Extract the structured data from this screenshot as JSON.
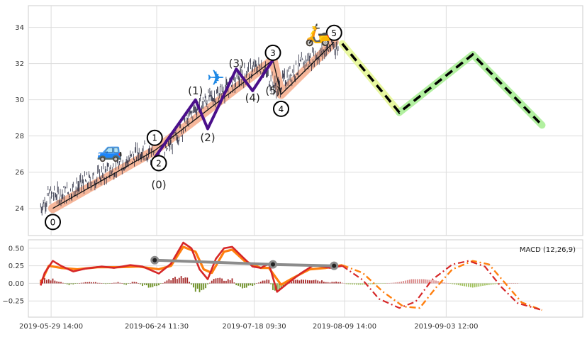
{
  "chart_data": [
    {
      "type": "line",
      "panel": "price",
      "ylim": [
        22.5,
        35.2
      ],
      "y_ticks": [
        "24",
        "26",
        "28",
        "30",
        "32",
        "34"
      ],
      "y_tick_values": [
        24,
        26,
        28,
        30,
        32,
        34
      ],
      "grid": true,
      "x_range_dates": [
        "2019-05-24",
        "2019-10-07"
      ],
      "price_path": [
        [
          "2019-05-27",
          24.1
        ],
        [
          "2019-05-29",
          24.7
        ],
        [
          "2019-06-02",
          24.8
        ],
        [
          "2019-06-06",
          25.3
        ],
        [
          "2019-06-10",
          25.7
        ],
        [
          "2019-06-14",
          26.2
        ],
        [
          "2019-06-18",
          26.7
        ],
        [
          "2019-06-21",
          27.3
        ],
        [
          "2019-06-23",
          26.9
        ],
        [
          "2019-06-25",
          26.6
        ],
        [
          "2019-06-28",
          27.6
        ],
        [
          "2019-07-01",
          28.5
        ],
        [
          "2019-07-03",
          29.2
        ],
        [
          "2019-07-05",
          29.8
        ],
        [
          "2019-07-08",
          30.1
        ],
        [
          "2019-07-11",
          30.5
        ],
        [
          "2019-07-14",
          31.0
        ],
        [
          "2019-07-17",
          31.6
        ],
        [
          "2019-07-20",
          31.9
        ],
        [
          "2019-07-22",
          31.2
        ],
        [
          "2019-07-24",
          30.6
        ],
        [
          "2019-07-27",
          31.4
        ],
        [
          "2019-07-31",
          32.1
        ],
        [
          "2019-08-04",
          32.6
        ],
        [
          "2019-08-07",
          33.0
        ],
        [
          "2019-08-08",
          32.8
        ]
      ],
      "trend_line": [
        [
          "2019-05-30",
          24.0
        ],
        [
          "2019-06-24",
          27.2
        ],
        [
          "2019-07-23",
          32.2
        ],
        [
          "2019-07-25",
          30.3
        ],
        [
          "2019-08-07",
          33.2
        ]
      ],
      "impulse_wave": [
        [
          "2019-06-24",
          26.8
        ],
        [
          "2019-07-04",
          30.0
        ],
        [
          "2019-07-07",
          28.4
        ],
        [
          "2019-07-14",
          31.7
        ],
        [
          "2019-07-18",
          30.5
        ],
        [
          "2019-07-23",
          32.2
        ]
      ],
      "forecast": [
        [
          "2019-08-09",
          33.1
        ],
        [
          "2019-08-23",
          29.3
        ],
        [
          "2019-09-10",
          32.5
        ],
        [
          "2019-09-27",
          28.6
        ]
      ],
      "forecast_a_end": "2019-08-23",
      "wave_markers_circled": [
        {
          "label": "0",
          "x": "2019-05-30",
          "y": 24.0,
          "text_y": 23.25
        },
        {
          "label": "1",
          "x": "2019-06-24",
          "y": 27.3,
          "text_y": 27.9
        },
        {
          "label": "2",
          "x": "2019-06-25",
          "y": 26.9,
          "text_y": 26.5
        },
        {
          "label": "3",
          "x": "2019-07-23",
          "y": 32.2,
          "text_y": 32.6
        },
        {
          "label": "4",
          "x": "2019-07-25",
          "y": 30.3,
          "text_y": 29.5
        },
        {
          "label": "5",
          "x": "2019-08-07",
          "y": 33.2,
          "text_y": 33.7
        }
      ],
      "wave_labels_sub": [
        {
          "label": "(0)",
          "x": "2019-06-25",
          "y": 25.3
        },
        {
          "label": "(1)",
          "x": "2019-07-04",
          "y": 30.5
        },
        {
          "label": "(2)",
          "x": "2019-07-07",
          "y": 27.9
        },
        {
          "label": "(3)",
          "x": "2019-07-14",
          "y": 32.0
        },
        {
          "label": "(4)",
          "x": "2019-07-18",
          "y": 30.1
        },
        {
          "label": "(5)",
          "x": "2019-07-23",
          "y": 30.5
        }
      ],
      "icons": [
        {
          "name": "car-icon",
          "glyph": "🚙",
          "x": "2019-06-13",
          "y": 27.2
        },
        {
          "name": "airplane-icon",
          "glyph": "✈",
          "x": "2019-07-09",
          "y": 31.2
        },
        {
          "name": "scooter-icon",
          "glyph": "🛵",
          "x": "2019-08-03",
          "y": 33.6
        }
      ],
      "colors": {
        "price": "#2b2d42",
        "trend_band": "#f4a582",
        "trend_line": "#111111",
        "impulse": "#4a0f8a",
        "forecast_band_a": "#e8f7a0",
        "forecast_band_b": "#b2f0a0",
        "forecast_line": "#000000"
      }
    },
    {
      "type": "line",
      "panel": "macd",
      "legend": "MACD (12,26,9)",
      "legend_position": "top-right",
      "ylim": [
        -0.48,
        0.62
      ],
      "y_ticks": [
        "0.50",
        "0.25",
        "0.00",
        "−0.25"
      ],
      "y_tick_values": [
        0.5,
        0.25,
        0.0,
        -0.25
      ],
      "grid": true,
      "macd_line": [
        [
          "2019-05-27",
          -0.03
        ],
        [
          "2019-05-28",
          0.15
        ],
        [
          "2019-05-30",
          0.32
        ],
        [
          "2019-06-01",
          0.25
        ],
        [
          "2019-06-04",
          0.17
        ],
        [
          "2019-06-07",
          0.21
        ],
        [
          "2019-06-11",
          0.24
        ],
        [
          "2019-06-14",
          0.22
        ],
        [
          "2019-06-18",
          0.26
        ],
        [
          "2019-06-21",
          0.24
        ],
        [
          "2019-06-25",
          0.14
        ],
        [
          "2019-06-28",
          0.28
        ],
        [
          "2019-07-01",
          0.58
        ],
        [
          "2019-07-03",
          0.5
        ],
        [
          "2019-07-05",
          0.2
        ],
        [
          "2019-07-07",
          0.06
        ],
        [
          "2019-07-09",
          0.35
        ],
        [
          "2019-07-11",
          0.5
        ],
        [
          "2019-07-13",
          0.52
        ],
        [
          "2019-07-16",
          0.35
        ],
        [
          "2019-07-18",
          0.24
        ],
        [
          "2019-07-20",
          0.22
        ],
        [
          "2019-07-22",
          0.28
        ],
        [
          "2019-07-24",
          -0.12
        ],
        [
          "2019-07-27",
          0.02
        ],
        [
          "2019-07-30",
          0.15
        ],
        [
          "2019-08-02",
          0.26
        ],
        [
          "2019-08-06",
          0.22
        ],
        [
          "2019-08-09",
          0.25
        ]
      ],
      "signal_line": [
        [
          "2019-05-27",
          0.0
        ],
        [
          "2019-05-29",
          0.25
        ],
        [
          "2019-06-01",
          0.22
        ],
        [
          "2019-06-05",
          0.2
        ],
        [
          "2019-06-10",
          0.23
        ],
        [
          "2019-06-15",
          0.23
        ],
        [
          "2019-06-20",
          0.24
        ],
        [
          "2019-06-25",
          0.2
        ],
        [
          "2019-06-28",
          0.25
        ],
        [
          "2019-07-01",
          0.52
        ],
        [
          "2019-07-04",
          0.45
        ],
        [
          "2019-07-06",
          0.2
        ],
        [
          "2019-07-08",
          0.15
        ],
        [
          "2019-07-11",
          0.45
        ],
        [
          "2019-07-13",
          0.48
        ],
        [
          "2019-07-16",
          0.32
        ],
        [
          "2019-07-20",
          0.22
        ],
        [
          "2019-07-22",
          0.22
        ],
        [
          "2019-07-25",
          -0.02
        ],
        [
          "2019-07-28",
          0.08
        ],
        [
          "2019-08-01",
          0.2
        ],
        [
          "2019-08-05",
          0.22
        ],
        [
          "2019-08-09",
          0.26
        ]
      ],
      "histogram_step_days": 0.5,
      "histogram": [
        [
          "2019-05-27",
          0.06
        ],
        [
          "2019-05-30",
          0.05
        ],
        [
          "2019-06-03",
          -0.02
        ],
        [
          "2019-06-06",
          0.01
        ],
        [
          "2019-06-09",
          0.02
        ],
        [
          "2019-06-12",
          -0.01
        ],
        [
          "2019-06-15",
          0.02
        ],
        [
          "2019-06-17",
          -0.02
        ],
        [
          "2019-06-19",
          0.03
        ],
        [
          "2019-06-21",
          -0.03
        ],
        [
          "2019-06-23",
          -0.05
        ],
        [
          "2019-06-25",
          -0.02
        ],
        [
          "2019-06-27",
          0.03
        ],
        [
          "2019-06-29",
          0.09
        ],
        [
          "2019-07-01",
          0.12
        ],
        [
          "2019-07-02",
          0.06
        ],
        [
          "2019-07-04",
          -0.09
        ],
        [
          "2019-07-05",
          -0.1
        ],
        [
          "2019-07-06",
          -0.08
        ],
        [
          "2019-07-08",
          0.04
        ],
        [
          "2019-07-09",
          0.07
        ],
        [
          "2019-07-11",
          0.05
        ],
        [
          "2019-07-13",
          0.06
        ],
        [
          "2019-07-14",
          -0.03
        ],
        [
          "2019-07-15",
          -0.06
        ],
        [
          "2019-07-16",
          -0.05
        ],
        [
          "2019-07-18",
          -0.03
        ],
        [
          "2019-07-20",
          0.03
        ],
        [
          "2019-07-22",
          0.05
        ],
        [
          "2019-07-23",
          -0.08
        ],
        [
          "2019-07-24",
          -0.1
        ],
        [
          "2019-07-25",
          -0.06
        ],
        [
          "2019-07-27",
          0.04
        ],
        [
          "2019-07-29",
          0.06
        ],
        [
          "2019-07-31",
          0.07
        ],
        [
          "2019-08-02",
          0.06
        ],
        [
          "2019-08-04",
          0.04
        ],
        [
          "2019-08-06",
          0.02
        ],
        [
          "2019-08-08",
          0.03
        ],
        [
          "2019-08-10",
          -0.01
        ],
        [
          "2019-08-13",
          -0.02
        ],
        [
          "2019-08-17",
          -0.01
        ],
        [
          "2019-08-20",
          0.0
        ],
        [
          "2019-08-23",
          0.02
        ],
        [
          "2019-08-26",
          0.06
        ],
        [
          "2019-08-29",
          0.06
        ],
        [
          "2019-09-01",
          0.04
        ],
        [
          "2019-09-04",
          0.0
        ],
        [
          "2019-09-07",
          -0.03
        ],
        [
          "2019-09-10",
          -0.06
        ],
        [
          "2019-09-13",
          -0.03
        ],
        [
          "2019-09-17",
          0.0
        ],
        [
          "2019-09-21",
          0.0
        ]
      ],
      "projected_macd": [
        [
          "2019-08-09",
          0.25
        ],
        [
          "2019-08-14",
          0.05
        ],
        [
          "2019-08-18",
          -0.22
        ],
        [
          "2019-08-23",
          -0.35
        ],
        [
          "2019-08-27",
          -0.26
        ],
        [
          "2019-08-31",
          0.05
        ],
        [
          "2019-09-05",
          0.27
        ],
        [
          "2019-09-09",
          0.32
        ],
        [
          "2019-09-13",
          0.24
        ],
        [
          "2019-09-17",
          -0.05
        ],
        [
          "2019-09-21",
          -0.28
        ],
        [
          "2019-09-27",
          -0.38
        ]
      ],
      "projected_signal": [
        [
          "2019-08-09",
          0.26
        ],
        [
          "2019-08-14",
          0.15
        ],
        [
          "2019-08-19",
          -0.12
        ],
        [
          "2019-08-24",
          -0.33
        ],
        [
          "2019-08-28",
          -0.35
        ],
        [
          "2019-09-01",
          -0.06
        ],
        [
          "2019-09-05",
          0.2
        ],
        [
          "2019-09-10",
          0.32
        ],
        [
          "2019-09-14",
          0.27
        ],
        [
          "2019-09-18",
          0.0
        ],
        [
          "2019-09-22",
          -0.27
        ],
        [
          "2019-09-27",
          -0.38
        ]
      ],
      "divergence_line": [
        [
          "2019-06-24",
          0.33
        ],
        [
          "2019-07-23",
          0.27
        ],
        [
          "2019-08-07",
          0.25
        ]
      ],
      "colors": {
        "macd": "#d62728",
        "signal": "#ff7f0e",
        "hist_pos": "#a52a2a",
        "hist_neg": "#6b8e23",
        "proj_pos": "#d98a8a",
        "proj_neg": "#9fbf5a",
        "divergence": "#8c8c8c"
      }
    }
  ],
  "x_axis": {
    "tick_labels": [
      "2019-05-29 14:00",
      "2019-06-24 11:30",
      "2019-07-18 09:30",
      "2019-08-09 14:00",
      "2019-09-03 12:00"
    ],
    "tick_dates": [
      "2019-05-29 14:00",
      "2019-06-24 11:30",
      "2019-07-18 09:30",
      "2019-08-09 14:00",
      "2019-09-03 12:00"
    ]
  }
}
